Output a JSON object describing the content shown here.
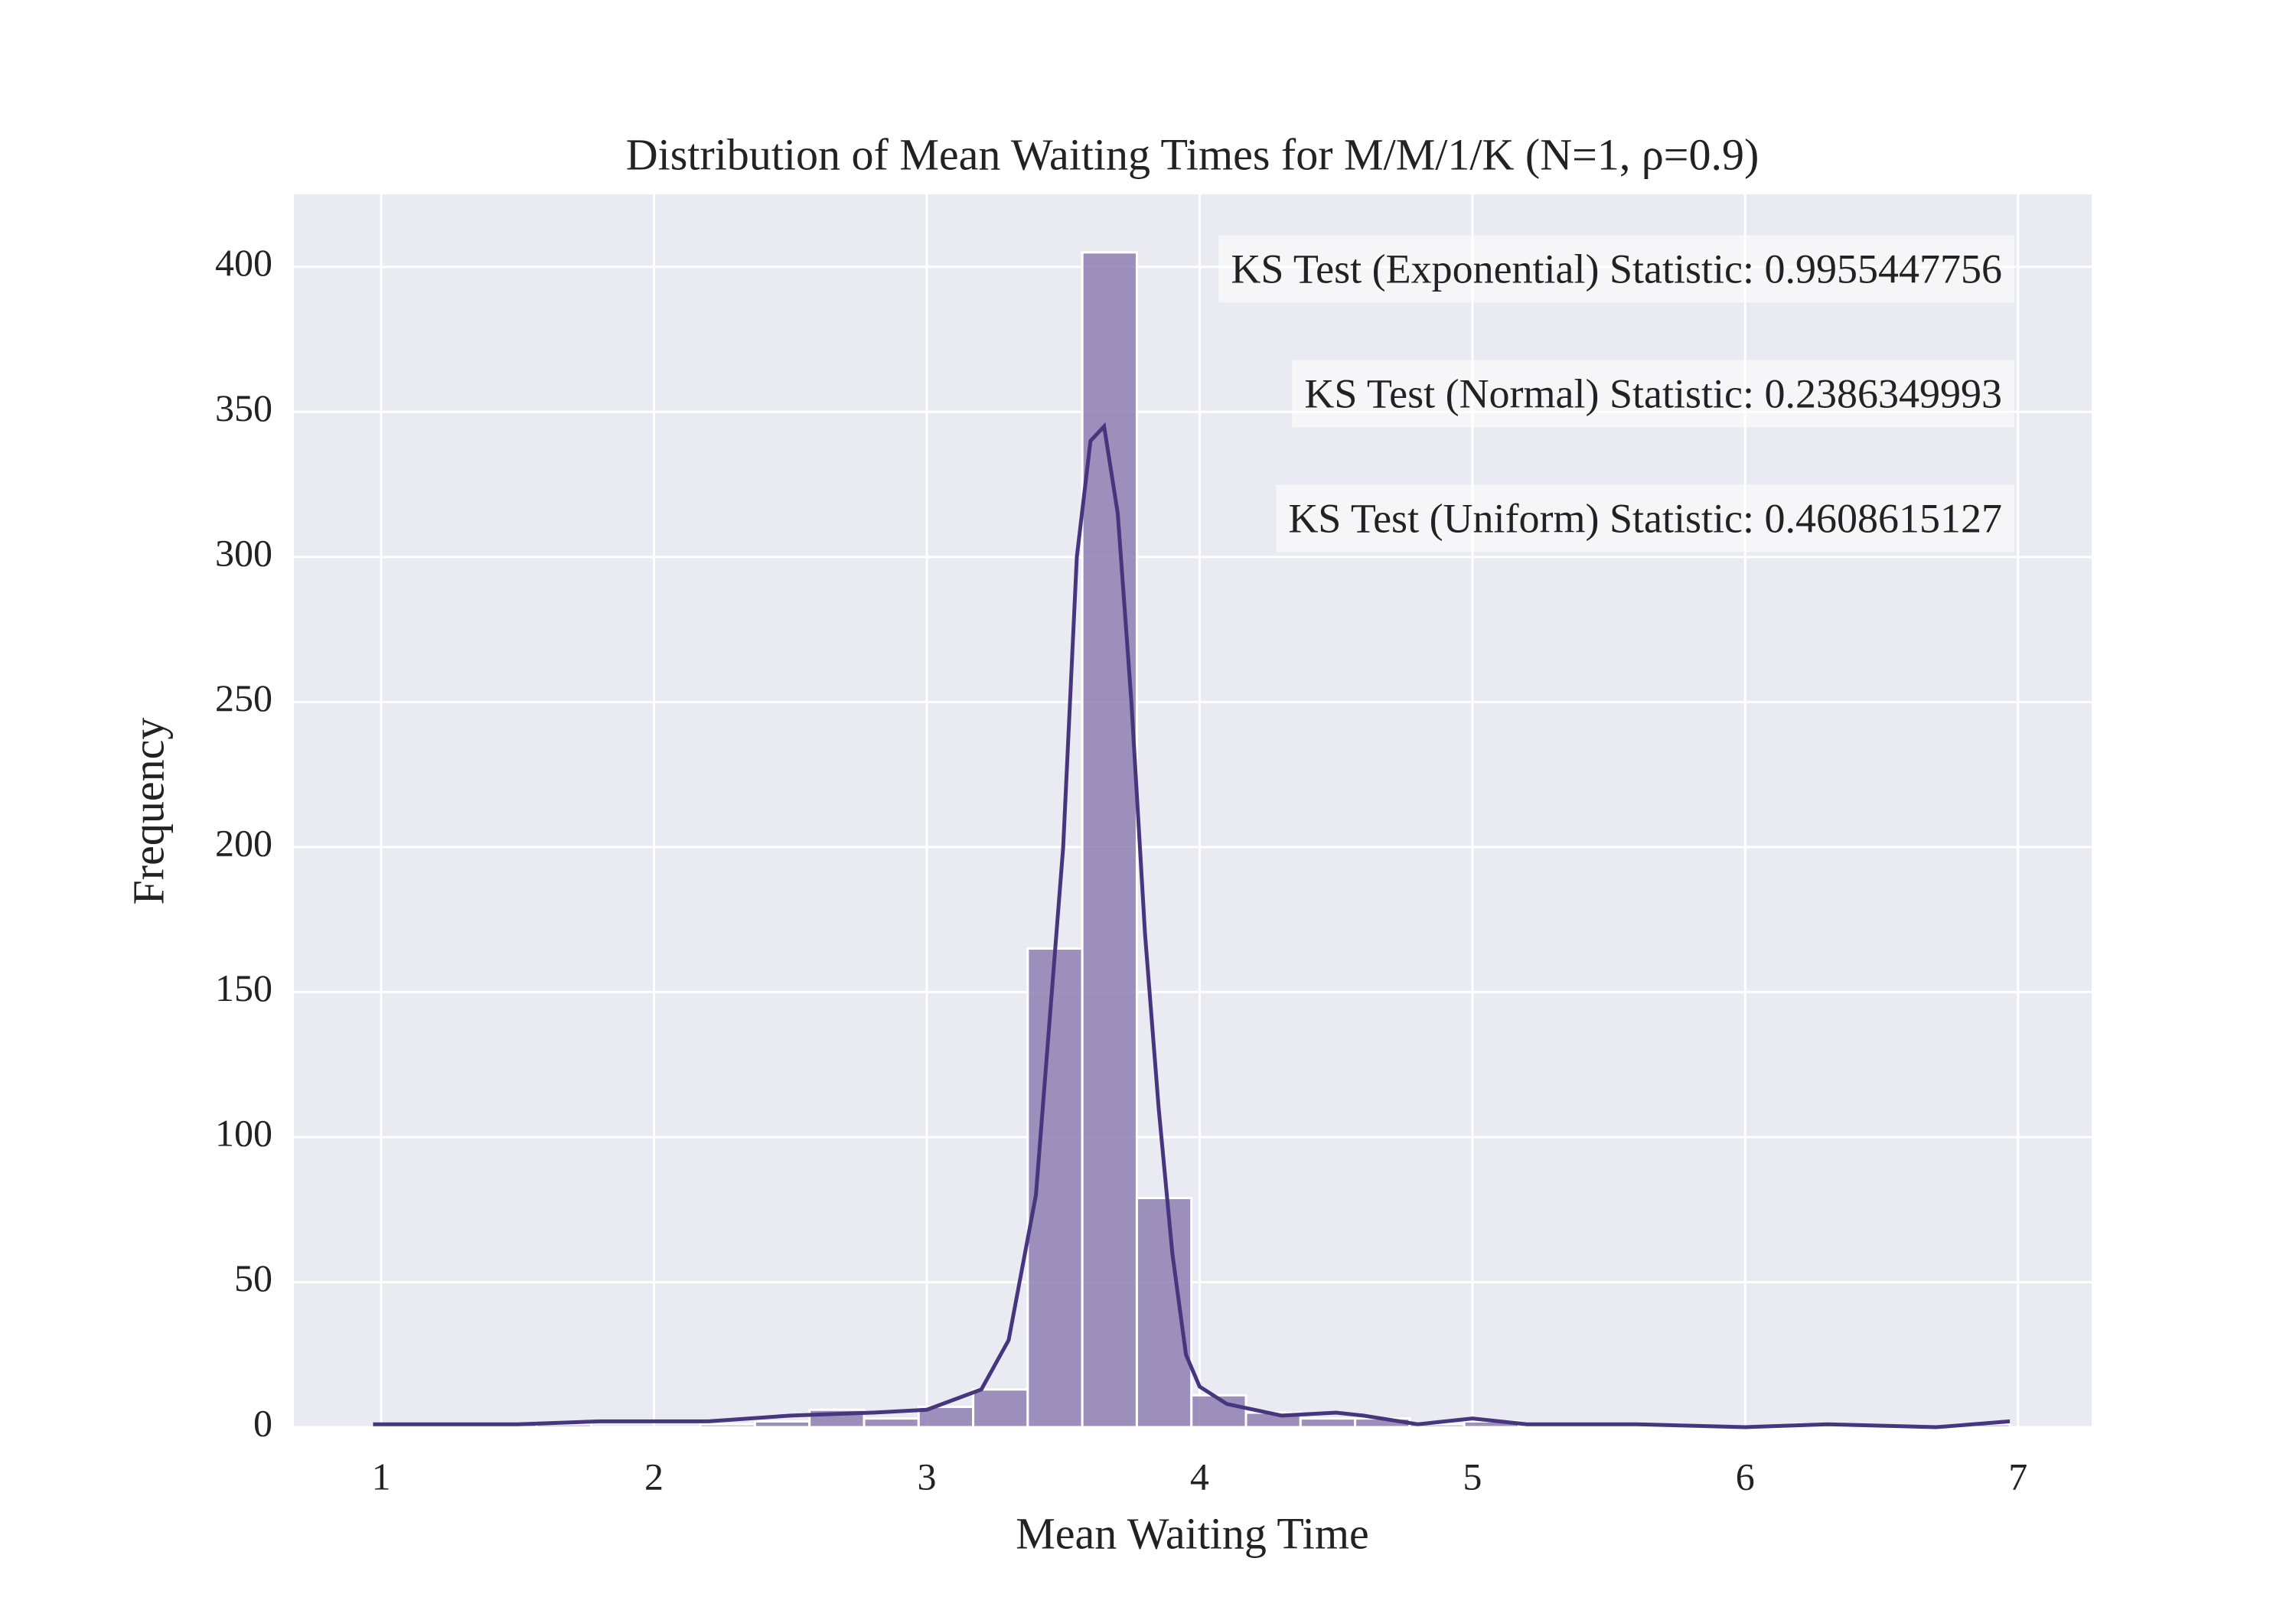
{
  "chart_data": {
    "type": "histogram",
    "title": "Distribution of Mean Waiting Times for M/M/1/K (N=1, ρ=0.9)",
    "x_label": "Mean Waiting Time",
    "y_label": "Frequency",
    "bins": [
      0.97,
      1.17,
      1.37,
      1.57,
      1.77,
      1.97,
      2.17,
      2.37,
      2.57,
      2.77,
      2.97,
      3.17,
      3.37,
      3.57,
      3.77,
      3.97,
      4.17,
      4.37,
      4.57,
      4.77,
      4.97,
      5.17,
      5.37,
      5.57,
      5.77,
      5.97,
      6.17,
      6.37,
      6.57,
      6.77,
      6.97
    ],
    "values": [
      1,
      0,
      1,
      1,
      0,
      0,
      1,
      2,
      6,
      3,
      7,
      13,
      165,
      405,
      79,
      11,
      5,
      3,
      3,
      1,
      2,
      0,
      0,
      1,
      0,
      0,
      1,
      0,
      0,
      1
    ],
    "color": "#8e7fb2",
    "kde": {
      "color": "#47367e",
      "x": [
        0.97,
        1.5,
        1.8,
        2.2,
        2.5,
        2.8,
        3.0,
        3.2,
        3.3,
        3.4,
        3.5,
        3.55,
        3.6,
        3.65,
        3.7,
        3.75,
        3.8,
        3.85,
        3.9,
        3.95,
        4.0,
        4.1,
        4.3,
        4.5,
        4.6,
        4.8,
        5.0,
        5.2,
        5.6,
        6.0,
        6.3,
        6.7,
        6.97
      ],
      "values": [
        1,
        1,
        2,
        2,
        4,
        5,
        6,
        13,
        30,
        80,
        200,
        300,
        340,
        345,
        315,
        250,
        170,
        110,
        60,
        25,
        14,
        8,
        4,
        5,
        4,
        1,
        3,
        1,
        1,
        0,
        1,
        0,
        2
      ]
    },
    "annotations": [
      "KS Test (Exponential) Statistic: 0.9955447756",
      "KS Test (Normal) Statistic: 0.2386349993",
      "KS Test (Uniform) Statistic: 0.4608615127"
    ],
    "xlim": [
      0.68,
      7.27
    ],
    "ylim": [
      0,
      425
    ],
    "xticks": [
      1,
      2,
      3,
      4,
      5,
      6,
      7
    ],
    "yticks": [
      0,
      50,
      100,
      150,
      200,
      250,
      300,
      350,
      400
    ],
    "grid": true
  }
}
